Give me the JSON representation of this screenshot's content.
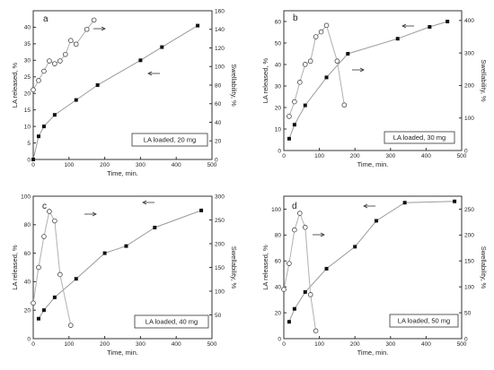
{
  "chart_data": [
    {
      "type": "line",
      "panel": "a",
      "annotation": "LA loaded, 20 mg",
      "xlabel": "Time, min.",
      "ylabel": "LA released, %",
      "y2label": "Swellability, %",
      "xlim": [
        0,
        500
      ],
      "xticks": [
        0,
        100,
        200,
        300,
        400,
        500
      ],
      "ylim": [
        0,
        45
      ],
      "yticks": [
        0,
        5,
        10,
        15,
        20,
        25,
        30,
        35,
        40
      ],
      "y2lim": [
        0,
        160
      ],
      "y2ticks": [
        0,
        20,
        40,
        60,
        80,
        100,
        120,
        140,
        160
      ],
      "grid": false,
      "series": [
        {
          "axis": "left",
          "marker": "filled-square",
          "x": [
            0,
            15,
            30,
            60,
            120,
            180,
            300,
            360,
            460
          ],
          "values": [
            0,
            7,
            10,
            13.5,
            18,
            22.5,
            30,
            34,
            40.5
          ]
        },
        {
          "axis": "right",
          "marker": "open-circle",
          "x": [
            0,
            15,
            30,
            45,
            60,
            75,
            90,
            105,
            120,
            150,
            170
          ],
          "values": [
            75,
            85,
            95,
            106,
            103,
            106,
            113,
            128,
            124,
            140,
            150
          ]
        }
      ]
    },
    {
      "type": "line",
      "panel": "b",
      "annotation": "LA loaded, 30 mg",
      "xlabel": "Time, min.",
      "ylabel": "LA released, %",
      "y2label": "Swellability, %",
      "xlim": [
        0,
        500
      ],
      "xticks": [
        0,
        100,
        200,
        300,
        400,
        500
      ],
      "ylim": [
        0,
        65
      ],
      "yticks": [
        0,
        10,
        20,
        30,
        40,
        50,
        60
      ],
      "y2lim": [
        0,
        430
      ],
      "y2ticks": [
        0,
        100,
        200,
        300,
        400
      ],
      "grid": false,
      "series": [
        {
          "axis": "left",
          "marker": "filled-square",
          "x": [
            15,
            30,
            60,
            120,
            180,
            320,
            410,
            460
          ],
          "values": [
            5.5,
            12,
            21,
            34,
            45,
            52,
            57.5,
            60
          ]
        },
        {
          "axis": "right",
          "marker": "open-circle",
          "x": [
            15,
            30,
            45,
            60,
            75,
            90,
            105,
            120,
            150,
            170
          ],
          "values": [
            105,
            150,
            210,
            265,
            275,
            350,
            365,
            385,
            275,
            140
          ]
        }
      ]
    },
    {
      "type": "line",
      "panel": "c",
      "annotation": "LA loaded, 40 mg",
      "xlabel": "Time, min.",
      "ylabel": "LA released, %",
      "y2label": "Swellability, %",
      "xlim": [
        0,
        500
      ],
      "xticks": [
        0,
        100,
        200,
        300,
        400,
        500
      ],
      "ylim": [
        0,
        100
      ],
      "yticks": [
        0,
        20,
        40,
        60,
        80,
        100
      ],
      "y2lim": [
        0,
        300
      ],
      "y2ticks": [
        50,
        100,
        150,
        200,
        250,
        300
      ],
      "grid": false,
      "series": [
        {
          "axis": "left",
          "marker": "filled-square",
          "x": [
            15,
            30,
            60,
            120,
            200,
            260,
            340,
            470
          ],
          "values": [
            14,
            20,
            29,
            42,
            60,
            65,
            78,
            90
          ]
        },
        {
          "axis": "right",
          "marker": "open-circle",
          "x": [
            0,
            15,
            30,
            45,
            60,
            75,
            105
          ],
          "values": [
            75,
            150,
            215,
            268,
            248,
            135,
            28
          ]
        }
      ]
    },
    {
      "type": "line",
      "panel": "d",
      "annotation": "LA loaded, 50 mg",
      "xlabel": "Time, min.",
      "ylabel": "LA released, %",
      "y2label": "Swellability, %",
      "xlim": [
        0,
        500
      ],
      "xticks": [
        0,
        100,
        200,
        300,
        400,
        500
      ],
      "ylim": [
        0,
        110
      ],
      "yticks": [
        0,
        20,
        40,
        60,
        80,
        100
      ],
      "y2lim": [
        0,
        275
      ],
      "y2ticks": [
        0,
        50,
        100,
        150,
        200,
        250
      ],
      "grid": false,
      "series": [
        {
          "axis": "left",
          "marker": "filled-square",
          "x": [
            15,
            30,
            60,
            120,
            200,
            260,
            340,
            480
          ],
          "values": [
            13,
            23,
            36,
            54,
            71,
            91,
            105,
            106
          ]
        },
        {
          "axis": "right",
          "marker": "open-circle",
          "x": [
            0,
            15,
            30,
            45,
            60,
            75,
            90
          ],
          "values": [
            95,
            145,
            210,
            242,
            215,
            85,
            15
          ]
        }
      ]
    }
  ]
}
